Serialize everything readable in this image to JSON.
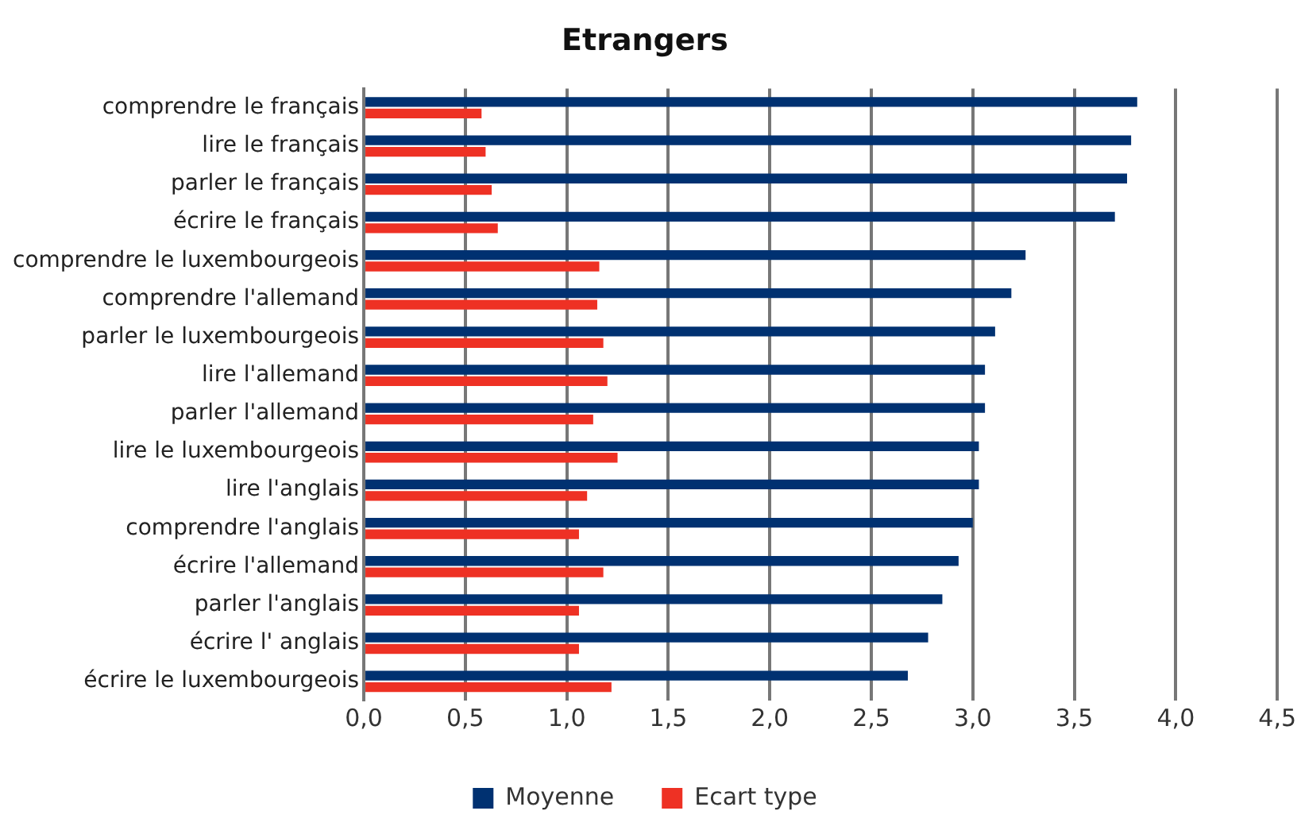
{
  "chart_data": {
    "type": "bar",
    "orientation": "horizontal",
    "title": "Etrangers",
    "categories": [
      "comprendre le français",
      "lire le français",
      "parler le français",
      "écrire le français",
      "comprendre le luxembourgeois",
      "comprendre l'allemand",
      "parler le luxembourgeois",
      "lire l'allemand",
      "parler l'allemand",
      "lire le luxembourgeois",
      "lire l'anglais",
      "comprendre l'anglais",
      "écrire l'allemand",
      "parler l'anglais",
      "écrire l' anglais",
      "écrire le luxembourgeois"
    ],
    "series": [
      {
        "name": "Moyenne",
        "color": "#003171",
        "values": [
          3.81,
          3.78,
          3.76,
          3.7,
          3.26,
          3.19,
          3.11,
          3.06,
          3.06,
          3.03,
          3.03,
          3.0,
          2.93,
          2.85,
          2.78,
          2.68
        ]
      },
      {
        "name": "Ecart type",
        "color": "#ee3124",
        "values": [
          0.58,
          0.6,
          0.63,
          0.66,
          1.16,
          1.15,
          1.18,
          1.2,
          1.13,
          1.25,
          1.1,
          1.06,
          1.18,
          1.06,
          1.06,
          1.22
        ]
      }
    ],
    "xlim": [
      0,
      4.5
    ],
    "xticks": [
      {
        "value": 0,
        "label": "0,0"
      },
      {
        "value": 0.5,
        "label": "0,5"
      },
      {
        "value": 1,
        "label": "1,0"
      },
      {
        "value": 1.5,
        "label": "1,5"
      },
      {
        "value": 2,
        "label": "2,0"
      },
      {
        "value": 2.5,
        "label": "2,5"
      },
      {
        "value": 3,
        "label": "3,0"
      },
      {
        "value": 3.5,
        "label": "3,5"
      },
      {
        "value": 4,
        "label": "4,0"
      },
      {
        "value": 4.5,
        "label": "4,5"
      }
    ],
    "grid": "x",
    "legend": "bottom"
  }
}
